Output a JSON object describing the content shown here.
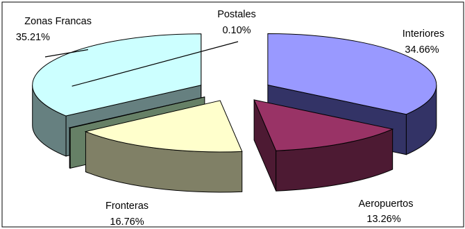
{
  "chart_data": {
    "type": "pie",
    "style": "3d-exploded",
    "title": "",
    "legend": "none",
    "slices": [
      {
        "name": "Interiores",
        "value": 34.66,
        "label": "34.66%",
        "color": "#9999ff",
        "side": "#333366"
      },
      {
        "name": "Aeropuertos",
        "value": 13.26,
        "label": "13.26%",
        "color": "#993366",
        "side": "#4d1a33"
      },
      {
        "name": "Fronteras",
        "value": 16.76,
        "label": "16.76%",
        "color": "#ffffcc",
        "side": "#808066"
      },
      {
        "name": "Postales",
        "value": 0.1,
        "label": "0.10%",
        "color": "#ccffcc",
        "side": "#668066"
      },
      {
        "name": "Zonas Francas",
        "value": 35.21,
        "label": "35.21%",
        "color": "#ccffff",
        "side": "#668080"
      }
    ]
  }
}
